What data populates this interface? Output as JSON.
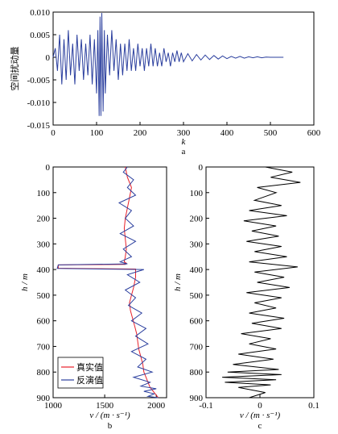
{
  "chart_data": [
    {
      "type": "line",
      "panel_label": "a",
      "xlabel": "k",
      "ylabel": "空间扰动量",
      "xlim": [
        0,
        600
      ],
      "ylim": [
        -0.015,
        0.01
      ],
      "xticks": [
        0,
        100,
        200,
        300,
        400,
        500,
        600
      ],
      "yticks": [
        "0.010",
        "0.005",
        "0",
        "-0.005",
        "-0.010",
        "-0.015"
      ],
      "yticks_values": [
        0.01,
        0.005,
        0,
        -0.005,
        -0.01,
        -0.015
      ],
      "grid": false,
      "series": [
        {
          "color": "#2b3f9e",
          "x": [
            0,
            5,
            10,
            15,
            20,
            25,
            30,
            35,
            40,
            45,
            50,
            55,
            60,
            65,
            70,
            75,
            80,
            85,
            90,
            95,
            100,
            103,
            106,
            108,
            110,
            112,
            115,
            118,
            120,
            125,
            130,
            135,
            140,
            145,
            150,
            155,
            160,
            165,
            170,
            175,
            180,
            185,
            190,
            195,
            200,
            205,
            210,
            215,
            220,
            225,
            230,
            235,
            240,
            245,
            250,
            255,
            260,
            265,
            270,
            275,
            280,
            285,
            290,
            295,
            300,
            310,
            320,
            330,
            340,
            350,
            360,
            370,
            380,
            390,
            400,
            410,
            420,
            430,
            440,
            450,
            460,
            470,
            480,
            490,
            500,
            510,
            520,
            530
          ],
          "y": [
            0,
            0.002,
            -0.003,
            0.005,
            -0.006,
            0.004,
            -0.005,
            0.006,
            -0.004,
            0.003,
            -0.006,
            0.005,
            -0.003,
            0.004,
            -0.005,
            0.003,
            -0.004,
            0.005,
            -0.006,
            0.004,
            -0.008,
            0.006,
            -0.013,
            0.009,
            -0.013,
            0.0098,
            -0.012,
            0.006,
            -0.008,
            0.005,
            -0.004,
            0.006,
            -0.003,
            0.004,
            -0.005,
            0.003,
            -0.004,
            0.003,
            -0.003,
            0.004,
            -0.003,
            0.002,
            -0.003,
            0.003,
            -0.002,
            0.002,
            -0.003,
            0.002,
            -0.002,
            0.003,
            -0.002,
            0.002,
            -0.002,
            0.001,
            -0.002,
            0.002,
            -0.001,
            0.001,
            -0.002,
            0.001,
            -0.001,
            0.0015,
            -0.001,
            0.001,
            -0.001,
            0.0008,
            -0.0008,
            0.0006,
            -0.0006,
            0.0005,
            -0.0005,
            0.0004,
            -0.0004,
            0.0003,
            -0.0003,
            0.0002,
            -0.0002,
            0.0002,
            -0.0002,
            0.0001,
            -0.0001,
            0.0001,
            -0.0001,
            5e-05,
            0,
            0,
            0,
            0
          ]
        }
      ]
    },
    {
      "type": "line",
      "panel_label": "b",
      "xlabel": "v / (m · s⁻¹)",
      "ylabel": "h / m",
      "xlim": [
        1000,
        2100
      ],
      "ylim": [
        0,
        900
      ],
      "y_inverted": true,
      "xticks": [
        1000,
        1500,
        2000
      ],
      "yticks": [
        0,
        100,
        200,
        300,
        400,
        500,
        600,
        700,
        800,
        900
      ],
      "legend_position": "bottom-left",
      "series": [
        {
          "name": "真实值",
          "color": "#e8202a",
          "v": [
            1700,
            1720,
            1760,
            1740,
            1720,
            1700,
            1690,
            1700,
            1710,
            1700,
            1690,
            1710,
            1700,
            1050,
            1050,
            1800,
            1800,
            1780,
            1760,
            1740,
            1750,
            1770,
            1790,
            1810,
            1820,
            1830,
            1850,
            1870,
            1880,
            1900,
            1920,
            1940,
            1960,
            1980,
            2000,
            2010,
            2020
          ],
          "h": [
            0,
            40,
            80,
            120,
            160,
            200,
            240,
            280,
            320,
            350,
            370,
            375,
            380,
            382,
            395,
            398,
            430,
            470,
            500,
            530,
            560,
            590,
            620,
            650,
            680,
            710,
            740,
            770,
            800,
            820,
            840,
            860,
            870,
            880,
            890,
            895,
            900
          ]
        },
        {
          "name": "反演值",
          "color": "#2b3f9e",
          "v": [
            1720,
            1680,
            1780,
            1720,
            1800,
            1640,
            1760,
            1700,
            1780,
            1650,
            1800,
            1680,
            1760,
            1650,
            1720,
            1050,
            1040,
            1880,
            1720,
            1840,
            1700,
            1800,
            1730,
            1860,
            1760,
            1900,
            1800,
            1920,
            1760,
            1900,
            1820,
            1960,
            1780,
            1940,
            1850,
            2000,
            1880,
            1980,
            1920,
            2020
          ],
          "h": [
            0,
            20,
            50,
            80,
            110,
            140,
            170,
            200,
            230,
            260,
            290,
            320,
            350,
            370,
            378,
            382,
            396,
            400,
            420,
            450,
            480,
            510,
            540,
            570,
            600,
            630,
            660,
            690,
            720,
            750,
            780,
            800,
            820,
            840,
            855,
            865,
            875,
            885,
            895,
            900
          ]
        }
      ]
    },
    {
      "type": "line",
      "panel_label": "c",
      "xlabel": "v / (m · s⁻¹)",
      "ylabel": "h / m",
      "xlim": [
        -0.1,
        0.1
      ],
      "ylim": [
        0,
        900
      ],
      "y_inverted": true,
      "xticks": [
        "-0.1",
        "0",
        "0.1"
      ],
      "xticks_values": [
        -0.1,
        0,
        0.1
      ],
      "yticks": [
        0,
        100,
        200,
        300,
        400,
        500,
        600,
        700,
        800,
        900
      ],
      "series": [
        {
          "color": "#000000",
          "v": [
            0.01,
            0.06,
            0.02,
            0.075,
            -0.005,
            0.03,
            -0.01,
            0.04,
            -0.02,
            0.05,
            -0.03,
            0.03,
            -0.015,
            0.035,
            -0.025,
            0.04,
            -0.01,
            0.05,
            -0.02,
            0.07,
            -0.01,
            0.045,
            -0.005,
            0.055,
            -0.025,
            0.04,
            -0.01,
            0.03,
            -0.02,
            0.045,
            -0.015,
            0.04,
            -0.035,
            0.02,
            -0.02,
            0.03,
            -0.04,
            0.025,
            -0.05,
            0.035,
            -0.06,
            0.04,
            -0.07,
            0.03,
            -0.065,
            0.02,
            -0.04,
            0.01,
            -0.02
          ],
          "h": [
            0,
            20,
            40,
            60,
            80,
            100,
            130,
            150,
            170,
            190,
            210,
            230,
            250,
            270,
            290,
            310,
            330,
            350,
            370,
            390,
            410,
            430,
            450,
            470,
            490,
            510,
            530,
            550,
            570,
            590,
            610,
            630,
            650,
            670,
            690,
            710,
            730,
            750,
            770,
            790,
            800,
            810,
            820,
            830,
            840,
            850,
            860,
            880,
            900
          ]
        }
      ]
    }
  ]
}
